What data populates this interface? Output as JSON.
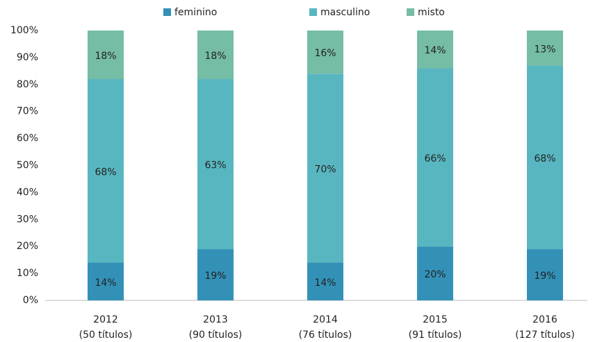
{
  "chart_data": {
    "type": "stacked_bar",
    "categories": [
      [
        "2012",
        "(50 títulos)"
      ],
      [
        "2013",
        "(90 títulos)"
      ],
      [
        "2014",
        "(76 títulos)"
      ],
      [
        "2015",
        "(91 títulos)"
      ],
      [
        "2016",
        "(127 títulos)"
      ]
    ],
    "series": [
      {
        "name": "feminino",
        "color": "#3391b8",
        "values": [
          14,
          19,
          14,
          20,
          19
        ],
        "value_labels": [
          "14%",
          "19%",
          "14%",
          "20%",
          "19%"
        ]
      },
      {
        "name": "masculino",
        "color": "#58b6c0",
        "values": [
          68,
          63,
          70,
          66,
          68
        ],
        "value_labels": [
          "68%",
          "63%",
          "70%",
          "66%",
          "68%"
        ]
      },
      {
        "name": "misto",
        "color": "#75bda5",
        "values": [
          18,
          18,
          16,
          14,
          13
        ],
        "value_labels": [
          "18%",
          "18%",
          "16%",
          "14%",
          "13%"
        ]
      }
    ],
    "ylim": [
      0,
      100
    ],
    "yticks": [
      {
        "value": 0,
        "label": "0%"
      },
      {
        "value": 10,
        "label": "10%"
      },
      {
        "value": 20,
        "label": "20%"
      },
      {
        "value": 30,
        "label": "30%"
      },
      {
        "value": 40,
        "label": "40%"
      },
      {
        "value": 50,
        "label": "50%"
      },
      {
        "value": 60,
        "label": "60%"
      },
      {
        "value": 70,
        "label": "70%"
      },
      {
        "value": 80,
        "label": "80%"
      },
      {
        "value": 90,
        "label": "90%"
      },
      {
        "value": 100,
        "label": "100%"
      }
    ],
    "legend": "top"
  }
}
